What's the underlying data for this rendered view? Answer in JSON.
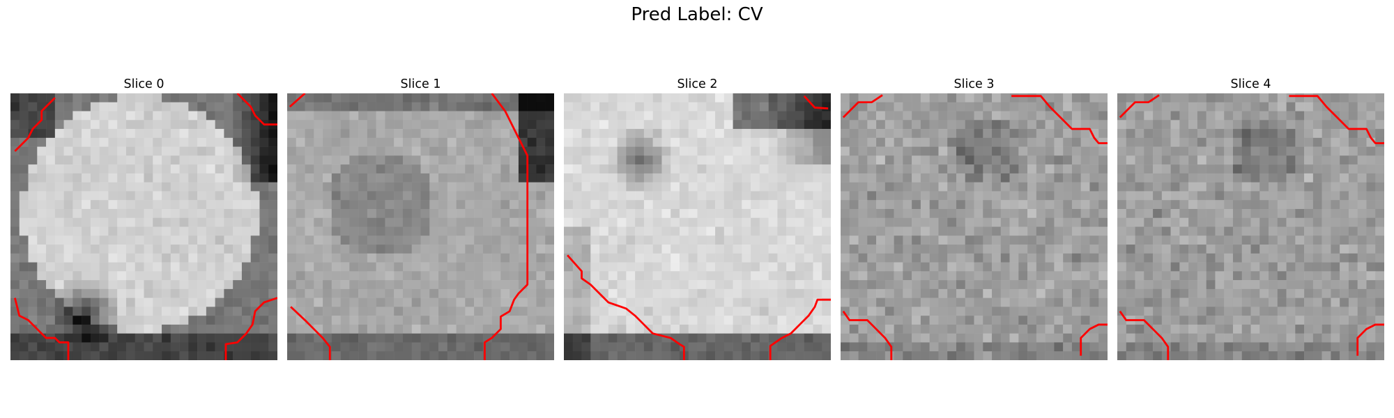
{
  "figure": {
    "title": "Pred Label: CV",
    "panels": [
      {
        "title": "Slice 0",
        "seed": 11,
        "scene": "bright-blob",
        "contour_color": "#ff0000"
      },
      {
        "title": "Slice 1",
        "seed": 23,
        "scene": "speckled",
        "contour_color": "#ff0000"
      },
      {
        "title": "Slice 2",
        "seed": 37,
        "scene": "bright-lobe",
        "contour_color": "#ff0000"
      },
      {
        "title": "Slice 3",
        "seed": 41,
        "scene": "noisy",
        "contour_color": "#ff0000"
      },
      {
        "title": "Slice 4",
        "seed": 53,
        "scene": "noisy",
        "contour_color": "#ff0000"
      }
    ]
  }
}
